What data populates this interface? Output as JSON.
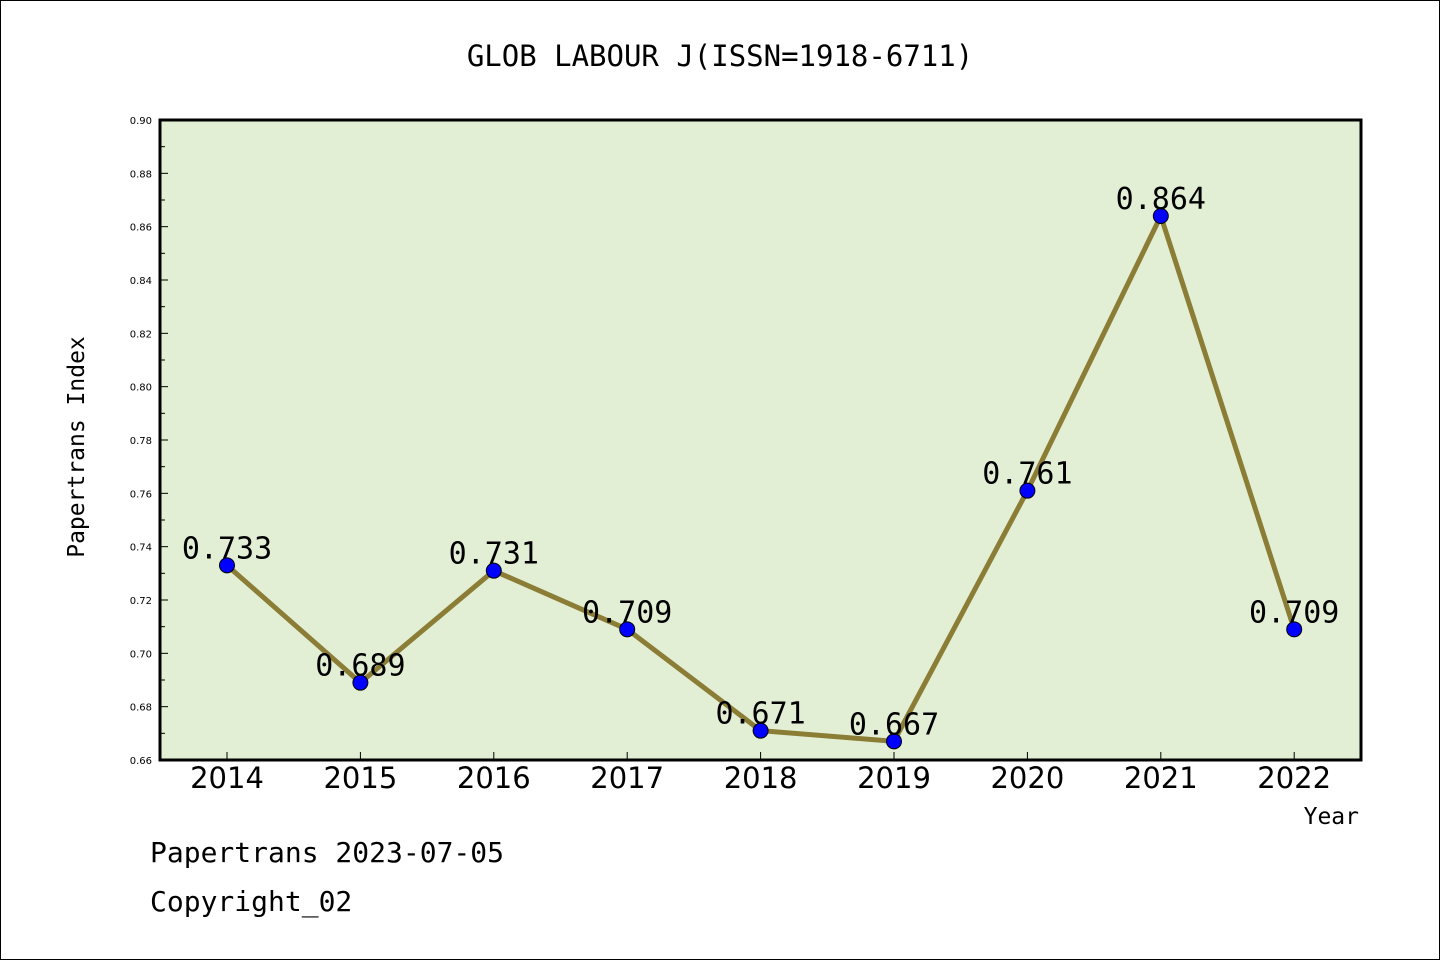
{
  "chart_data": {
    "type": "line",
    "title": "GLOB LABOUR J(ISSN=1918-6711)",
    "xlabel": "Year",
    "ylabel": "Papertrans Index",
    "ylim": [
      0.66,
      0.9
    ],
    "yticks": [
      "0.66",
      "0.68",
      "0.70",
      "0.72",
      "0.74",
      "0.76",
      "0.78",
      "0.80",
      "0.82",
      "0.84",
      "0.86",
      "0.88",
      "0.90"
    ],
    "categories": [
      "2014",
      "2015",
      "2016",
      "2017",
      "2018",
      "2019",
      "2020",
      "2021",
      "2022"
    ],
    "series": [
      {
        "values": [
          0.733,
          0.689,
          0.731,
          0.709,
          0.671,
          0.667,
          0.761,
          0.864,
          0.709
        ]
      }
    ],
    "data_labels": [
      "0.733",
      "0.689",
      "0.731",
      "0.709",
      "0.671",
      "0.667",
      "0.761",
      "0.864",
      "0.709"
    ],
    "grid": false,
    "colors": {
      "plot_background": "#e2efd5",
      "line": "#8b7d35",
      "marker": "#0000ff"
    }
  },
  "footer": {
    "line1": "Papertrans 2023-07-05",
    "line2": "Copyright_02"
  }
}
